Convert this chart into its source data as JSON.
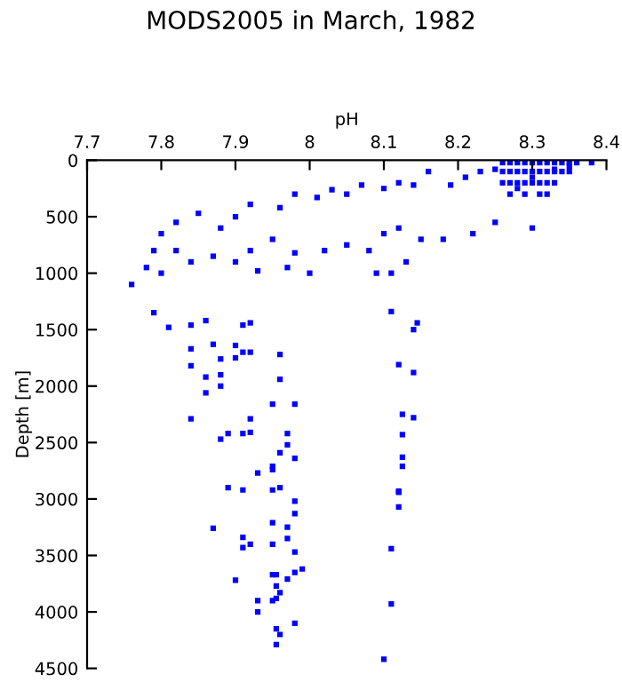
{
  "chart_data": {
    "type": "scatter",
    "title": "MODS2005 in March, 1982",
    "xlabel": "pH",
    "ylabel": "Depth [m]",
    "marker": "square",
    "grid": false,
    "legend": false,
    "xlim": [
      7.7,
      8.4
    ],
    "xticks": [
      7.7,
      7.8,
      7.9,
      8,
      8.1,
      8.2,
      8.3,
      8.4
    ],
    "ylim": [
      4500,
      0
    ],
    "yticks": [
      0,
      500,
      1000,
      1500,
      2000,
      2500,
      3000,
      3500,
      4000,
      4500
    ],
    "series": [
      {
        "color": "#0000ff",
        "x": [
          8.26,
          8.27,
          8.28,
          8.29,
          8.3,
          8.31,
          8.32,
          8.33,
          8.34,
          8.35,
          8.36,
          8.26,
          8.27,
          8.28,
          8.29,
          8.3,
          8.31,
          8.32,
          8.33,
          8.34,
          8.35,
          8.26,
          8.27,
          8.28,
          8.29,
          8.3,
          8.31,
          8.32,
          8.33,
          8.27,
          8.29,
          8.31,
          8.32,
          8.38,
          8.35,
          8.33,
          8.3,
          8.28,
          8.25,
          8.23,
          8.21,
          8.19,
          8.16,
          8.14,
          8.12,
          8.1,
          8.07,
          8.05,
          8.03,
          8.01,
          7.98,
          7.96,
          7.92,
          7.9,
          7.88,
          7.85,
          7.82,
          7.8,
          7.79,
          8.3,
          8.25,
          8.22,
          8.18,
          8.15,
          8.12,
          8.1,
          8.08,
          8.05,
          8.02,
          7.98,
          7.95,
          7.92,
          7.9,
          7.87,
          7.84,
          7.82,
          7.8,
          7.78,
          7.76,
          8.09,
          8.11,
          8.13,
          8.0,
          7.97,
          7.93,
          7.79,
          7.81,
          7.84,
          7.86,
          7.91,
          7.92,
          8.11,
          8.14,
          8.145,
          7.84,
          7.87,
          7.9,
          7.91,
          7.92,
          7.96,
          7.84,
          7.88,
          7.9,
          7.86,
          7.88,
          7.96,
          7.86,
          7.88,
          8.12,
          8.14,
          7.84,
          7.95,
          7.98,
          7.92,
          8.125,
          8.14,
          7.89,
          7.91,
          7.92,
          7.88,
          7.97,
          7.97,
          7.96,
          7.98,
          7.95,
          8.125,
          8.125,
          8.125,
          7.93,
          7.95,
          7.89,
          7.91,
          7.95,
          7.96,
          8.12,
          7.98,
          7.98,
          8.12,
          8.12,
          7.87,
          7.95,
          7.97,
          7.91,
          7.91,
          7.92,
          7.95,
          7.97,
          7.98,
          8.11,
          7.9,
          7.95,
          7.955,
          7.97,
          7.98,
          7.99,
          7.955,
          7.96,
          7.93,
          7.95,
          7.955,
          7.93,
          8.11,
          7.98,
          7.955,
          7.96,
          7.955,
          8.1
        ],
        "values": [
          20,
          20,
          20,
          20,
          20,
          20,
          20,
          20,
          20,
          20,
          20,
          100,
          100,
          100,
          100,
          100,
          100,
          100,
          100,
          100,
          100,
          200,
          200,
          200,
          200,
          200,
          200,
          200,
          200,
          300,
          300,
          300,
          300,
          20,
          50,
          80,
          150,
          250,
          80,
          100,
          150,
          220,
          100,
          220,
          200,
          250,
          220,
          300,
          260,
          330,
          300,
          420,
          390,
          500,
          600,
          470,
          550,
          650,
          800,
          600,
          550,
          650,
          700,
          700,
          600,
          650,
          800,
          750,
          800,
          820,
          700,
          800,
          900,
          850,
          900,
          800,
          1000,
          950,
          1100,
          1000,
          1000,
          900,
          1000,
          950,
          980,
          1350,
          1480,
          1460,
          1420,
          1460,
          1440,
          1340,
          1500,
          1440,
          1670,
          1630,
          1640,
          1700,
          1700,
          1720,
          1820,
          1760,
          1750,
          1920,
          1900,
          1940,
          2060,
          2000,
          1810,
          1880,
          2290,
          2160,
          2160,
          2290,
          2250,
          2280,
          2420,
          2420,
          2410,
          2470,
          2420,
          2520,
          2590,
          2640,
          2710,
          2430,
          2630,
          2710,
          2770,
          2740,
          2900,
          2920,
          2920,
          2900,
          2940,
          3020,
          3130,
          2930,
          3070,
          3260,
          3210,
          3250,
          3340,
          3430,
          3400,
          3400,
          3350,
          3470,
          3440,
          3720,
          3670,
          3670,
          3710,
          3650,
          3620,
          3770,
          3830,
          3900,
          3900,
          3880,
          4000,
          3930,
          4100,
          4150,
          4200,
          4290,
          4420
        ]
      }
    ]
  }
}
